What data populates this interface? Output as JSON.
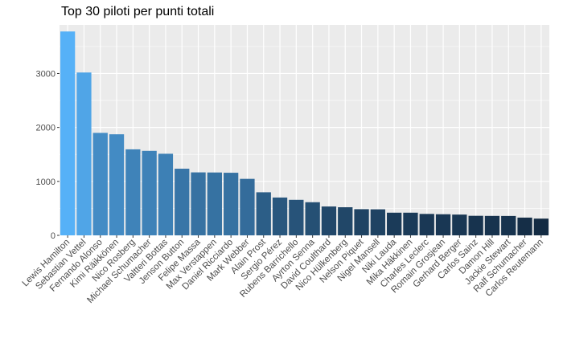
{
  "chart_data": {
    "type": "bar",
    "title": "Top 30 piloti per punti totali",
    "xlabel": "",
    "ylabel": "",
    "categories": [
      "Lewis Hamilton",
      "Sebastian Vettel",
      "Fernando Alonso",
      "Kimi Räikkönen",
      "Nico Rosberg",
      "Michael Schumacher",
      "Valtteri Bottas",
      "Jenson Button",
      "Felipe Massa",
      "Max Verstappen",
      "Daniel Ricciardo",
      "Mark Webber",
      "Alain Prost",
      "Sergio Pérez",
      "Rubens Barrichello",
      "Ayrton Senna",
      "David Coulthard",
      "Nico Hülkenberg",
      "Nelson Piquet",
      "Nigel Mansell",
      "Niki Lauda",
      "Mika Häkkinen",
      "Charles Leclerc",
      "Romain Grosjean",
      "Gerhard Berger",
      "Carlos Sainz",
      "Damon Hill",
      "Jackie Stewart",
      "Ralf Schumacher",
      "Carlos Reutemann"
    ],
    "values": [
      3778,
      3018,
      1899,
      1873,
      1594,
      1566,
      1512,
      1235,
      1167,
      1165,
      1160,
      1047,
      798,
      701,
      658,
      614,
      535,
      521,
      485,
      482,
      420,
      420,
      397,
      391,
      385,
      362,
      360,
      359,
      329,
      310
    ],
    "ylim": [
      0,
      3900
    ],
    "yticks": [
      0,
      1000,
      2000,
      3000
    ],
    "grid": true,
    "legend": "none",
    "colors": {
      "low": "#132B43",
      "high": "#56B1F7",
      "panel": "#EBEBEB",
      "grid": "#FFFFFF"
    }
  }
}
